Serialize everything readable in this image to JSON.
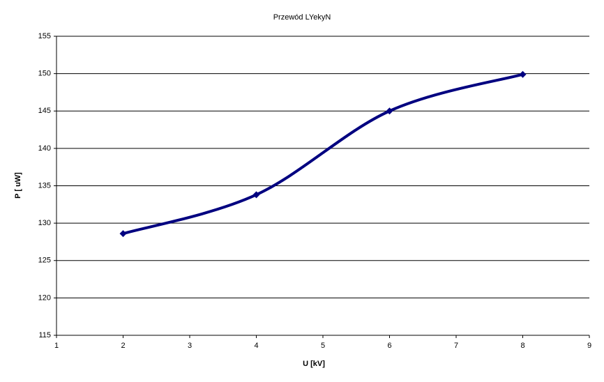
{
  "chart_data": {
    "type": "scatter-line",
    "title": "Przewód LYekyN",
    "x_label": "U  [kV]",
    "y_label": "P  [ uW]",
    "x": [
      2,
      4,
      6,
      8
    ],
    "series": [
      {
        "name": "P",
        "color": "#000080",
        "values": [
          128.6,
          133.8,
          145.0,
          149.9
        ]
      }
    ],
    "xlim": [
      1,
      9
    ],
    "xticks": [
      1,
      2,
      3,
      4,
      5,
      6,
      7,
      8,
      9
    ],
    "ylim": [
      115,
      155
    ],
    "yticks": [
      115,
      120,
      125,
      130,
      135,
      140,
      145,
      150,
      155
    ],
    "grid": true
  }
}
